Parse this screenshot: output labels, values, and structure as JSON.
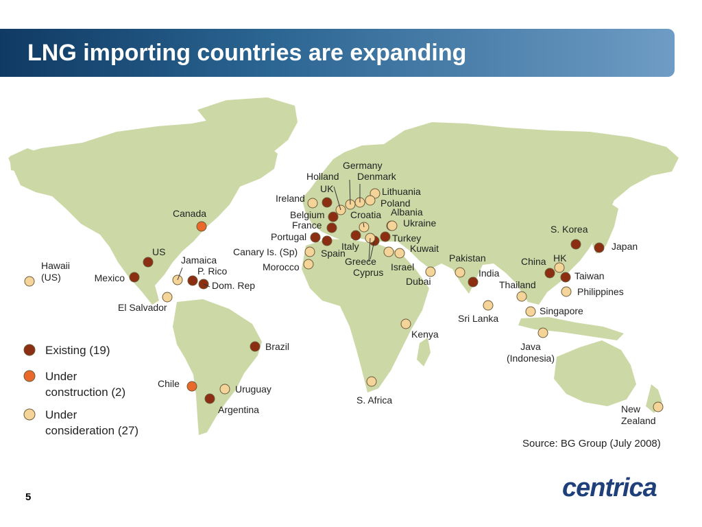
{
  "title": "LNG importing countries are expanding",
  "page_number": "5",
  "logo_text": "centrica",
  "source": "Source: BG Group (July 2008)",
  "colors": {
    "existing": "#8b2e12",
    "under_construction": "#e8692a",
    "under_consideration": "#f5d49a",
    "land": "#ccd9a6",
    "title_bar_start": "#0f3a63",
    "title_bar_end": "#6e9cc4",
    "logo": "#1f3f7a"
  },
  "legend": [
    {
      "status": "existing",
      "lines": [
        "Existing (19)"
      ]
    },
    {
      "status": "under_construction",
      "lines": [
        "Under",
        "construction (2)"
      ]
    },
    {
      "status": "under_consideration",
      "lines": [
        "Under",
        "consideration (27)"
      ]
    }
  ],
  "markers": [
    {
      "status": "under_consideration",
      "lines": [
        "Hawaii",
        "(US)"
      ]
    },
    {
      "status": "existing",
      "lines": [
        "Mexico"
      ]
    },
    {
      "status": "existing",
      "lines": [
        "US"
      ]
    },
    {
      "status": "under_construction",
      "lines": [
        "Canada"
      ]
    },
    {
      "status": "under_consideration",
      "lines": [
        "Jamaica"
      ]
    },
    {
      "status": "existing",
      "lines": [
        "P. Rico"
      ]
    },
    {
      "status": "existing",
      "lines": [
        "Dom. Rep"
      ]
    },
    {
      "status": "under_consideration",
      "lines": [
        "El Salvador"
      ]
    },
    {
      "status": "existing",
      "lines": [
        "Brazil"
      ]
    },
    {
      "status": "under_construction",
      "lines": [
        "Chile"
      ]
    },
    {
      "status": "under_consideration",
      "lines": [
        "Uruguay"
      ]
    },
    {
      "status": "existing",
      "lines": [
        "Argentina"
      ]
    },
    {
      "status": "under_consideration",
      "lines": [
        "Ireland"
      ]
    },
    {
      "status": "existing",
      "lines": [
        "UK"
      ]
    },
    {
      "status": "under_consideration",
      "lines": [
        "Holland"
      ]
    },
    {
      "status": "under_consideration",
      "lines": [
        "Germany"
      ]
    },
    {
      "status": "under_consideration",
      "lines": [
        "Denmark"
      ]
    },
    {
      "status": "under_consideration",
      "lines": [
        "Lithuania"
      ]
    },
    {
      "status": "under_consideration",
      "lines": [
        "Poland"
      ]
    },
    {
      "status": "existing",
      "lines": [
        "Belgium"
      ]
    },
    {
      "status": "existing",
      "lines": [
        "France"
      ]
    },
    {
      "status": "under_consideration",
      "lines": [
        "Croatia"
      ]
    },
    {
      "status": "under_consideration",
      "lines": [
        "Albania"
      ]
    },
    {
      "status": "under_consideration",
      "lines": [
        "Ukraine"
      ]
    },
    {
      "status": "existing",
      "lines": [
        "Portugal"
      ]
    },
    {
      "status": "existing",
      "lines": [
        "Spain"
      ]
    },
    {
      "status": "existing",
      "lines": [
        "Italy"
      ]
    },
    {
      "status": "existing",
      "lines": [
        "Greece"
      ]
    },
    {
      "status": "existing",
      "lines": [
        "Turkey"
      ]
    },
    {
      "status": "under_consideration",
      "lines": [
        "Canary Is. (Sp)"
      ]
    },
    {
      "status": "under_consideration",
      "lines": [
        "Morocco"
      ]
    },
    {
      "status": "under_consideration",
      "lines": [
        "Cyprus"
      ]
    },
    {
      "status": "under_consideration",
      "lines": [
        "Israel"
      ]
    },
    {
      "status": "under_consideration",
      "lines": [
        "Kuwait"
      ]
    },
    {
      "status": "under_consideration",
      "lines": [
        "Dubai"
      ]
    },
    {
      "status": "under_consideration",
      "lines": [
        "Pakistan"
      ]
    },
    {
      "status": "existing",
      "lines": [
        "India"
      ]
    },
    {
      "status": "under_consideration",
      "lines": [
        "Sri Lanka"
      ]
    },
    {
      "status": "under_consideration",
      "lines": [
        "Kenya"
      ]
    },
    {
      "status": "under_consideration",
      "lines": [
        "S. Africa"
      ]
    },
    {
      "status": "existing",
      "lines": [
        "China"
      ]
    },
    {
      "status": "under_consideration",
      "lines": [
        "HK"
      ]
    },
    {
      "status": "existing",
      "lines": [
        "S. Korea"
      ]
    },
    {
      "status": "existing",
      "lines": [
        "Japan"
      ]
    },
    {
      "status": "existing",
      "lines": [
        "Taiwan"
      ]
    },
    {
      "status": "under_consideration",
      "lines": [
        "Philippines"
      ]
    },
    {
      "status": "under_consideration",
      "lines": [
        "Thailand"
      ]
    },
    {
      "status": "under_consideration",
      "lines": [
        "Singapore"
      ]
    },
    {
      "status": "under_consideration",
      "lines": [
        "Java",
        "(Indonesia)"
      ]
    },
    {
      "status": "under_consideration",
      "lines": [
        "New",
        "Zealand"
      ]
    }
  ]
}
